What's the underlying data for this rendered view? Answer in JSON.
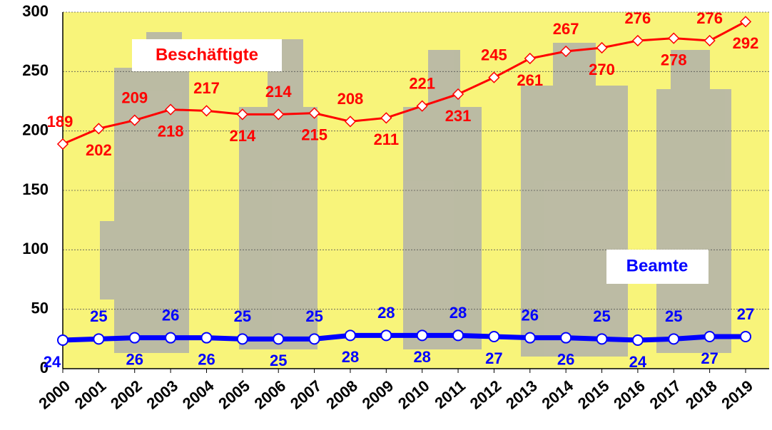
{
  "chart_data": {
    "type": "line",
    "x": [
      "2000",
      "2001",
      "2002",
      "2003",
      "2004",
      "2005",
      "2006",
      "2007",
      "2008",
      "2009",
      "2010",
      "2011",
      "2012",
      "2013",
      "2014",
      "2015",
      "2016",
      "2017",
      "2018",
      "2019"
    ],
    "series": [
      {
        "name": "Beschäftigte",
        "color": "#ff0000",
        "values": [
          189,
          202,
          209,
          218,
          217,
          214,
          214,
          215,
          208,
          211,
          221,
          231,
          245,
          261,
          267,
          270,
          276,
          278,
          276,
          292
        ]
      },
      {
        "name": "Beamte",
        "color": "#0000ff",
        "values": [
          24,
          25,
          26,
          26,
          26,
          25,
          25,
          25,
          28,
          28,
          28,
          28,
          27,
          26,
          26,
          25,
          24,
          25,
          27,
          27
        ]
      }
    ],
    "ylim": [
      0,
      300
    ],
    "yticks": [
      0,
      50,
      100,
      150,
      200,
      250,
      300
    ],
    "grid": true
  }
}
